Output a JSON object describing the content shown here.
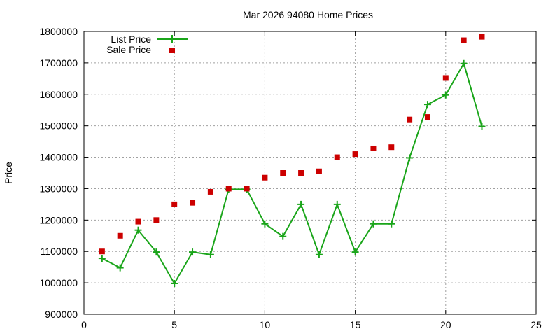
{
  "chart_data": {
    "type": "line",
    "title": "Mar 2026 94080 Home Prices",
    "xlabel": "",
    "ylabel": "Price",
    "xlim": [
      0,
      25
    ],
    "ylim": [
      900000,
      1800000
    ],
    "x_ticks": [
      0,
      5,
      10,
      15,
      20,
      25
    ],
    "y_ticks": [
      900000,
      1000000,
      1100000,
      1200000,
      1300000,
      1400000,
      1500000,
      1600000,
      1700000,
      1800000
    ],
    "grid": true,
    "legend_position": "top-left",
    "series": [
      {
        "name": "List Price",
        "style": "linespoints",
        "color": "#1aa51a",
        "marker": "plus",
        "x": [
          1,
          2,
          3,
          4,
          5,
          6,
          7,
          8,
          9,
          10,
          11,
          12,
          13,
          14,
          15,
          16,
          17,
          18,
          19,
          20,
          21,
          22
        ],
        "y": [
          1078000,
          1048000,
          1168000,
          1098000,
          998000,
          1098000,
          1090000,
          1298000,
          1298000,
          1188000,
          1148000,
          1250000,
          1090000,
          1250000,
          1098000,
          1188000,
          1188000,
          1398000,
          1568000,
          1598000,
          1698000,
          1498000
        ]
      },
      {
        "name": "Sale Price",
        "style": "points",
        "color": "#cc0000",
        "marker": "square",
        "x": [
          1,
          2,
          3,
          4,
          5,
          6,
          7,
          8,
          9,
          10,
          11,
          12,
          13,
          14,
          15,
          16,
          17,
          18,
          19,
          20,
          21,
          22
        ],
        "y": [
          1100000,
          1150000,
          1195000,
          1200000,
          1250000,
          1255000,
          1290000,
          1300000,
          1300000,
          1335000,
          1350000,
          1350000,
          1355000,
          1400000,
          1410000,
          1428000,
          1432000,
          1520000,
          1528000,
          1652000,
          1772000,
          1783000
        ]
      }
    ]
  }
}
